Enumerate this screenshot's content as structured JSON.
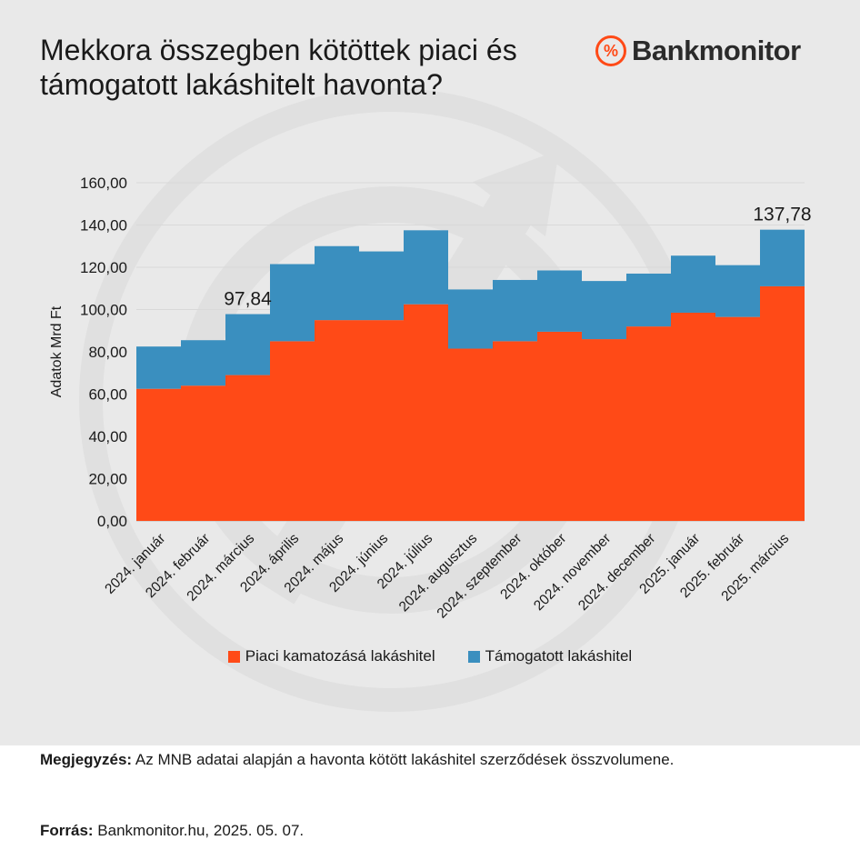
{
  "title": "Mekkora összegben kötöttek piaci és támogatott lakáshitelt havonta?",
  "brand": {
    "name": "Bankmonitor",
    "logo_symbol": "%",
    "accent": "#ff4a17"
  },
  "chart_data": {
    "type": "bar",
    "stacked": true,
    "categories": [
      "2024. január",
      "2024. február",
      "2024. március",
      "2024. április",
      "2024. május",
      "2024. június",
      "2024. július",
      "2024. augusztus",
      "2024. szeptember",
      "2024. október",
      "2024. november",
      "2024. december",
      "2025. január",
      "2025. február",
      "2025. március"
    ],
    "series": [
      {
        "name": "Piaci kamatozású lakáshitel",
        "color": "#ff4a17",
        "values": [
          62.5,
          64.0,
          69.0,
          85.0,
          95.0,
          95.0,
          102.5,
          81.5,
          85.0,
          89.5,
          86.0,
          92.0,
          98.5,
          96.5,
          111.0
        ]
      },
      {
        "name": "Támogatott lakáshitel",
        "color": "#3a8fbf",
        "values": [
          20.0,
          21.5,
          28.84,
          36.5,
          35.0,
          32.5,
          35.0,
          28.0,
          29.0,
          29.0,
          27.5,
          25.0,
          27.0,
          24.5,
          26.78
        ]
      }
    ],
    "ylabel": "Adatok Mrd Ft",
    "ylim": [
      0,
      160
    ],
    "yticks": [
      "0,00",
      "20,00",
      "40,00",
      "60,00",
      "80,00",
      "100,00",
      "120,00",
      "140,00",
      "160,00"
    ],
    "annotations": [
      {
        "category": "2024. március",
        "text": "97,84"
      },
      {
        "category": "2025. március",
        "text": "137,78"
      }
    ],
    "grid": true,
    "legend": "bottom"
  },
  "legend": {
    "items": [
      {
        "label": "Piaci kamatozásá lakáshitel",
        "color": "#ff4a17"
      },
      {
        "label": "Támogatott lakáshitel",
        "color": "#3a8fbf"
      }
    ]
  },
  "note": {
    "label": "Megjegyzés:",
    "text": " Az MNB adatai alapján a havonta kötött lakáshitel szerződések összvolumene."
  },
  "source": {
    "label": "Forrás:",
    "text": " Bankmonitor.hu, 2025. 05. 07."
  }
}
